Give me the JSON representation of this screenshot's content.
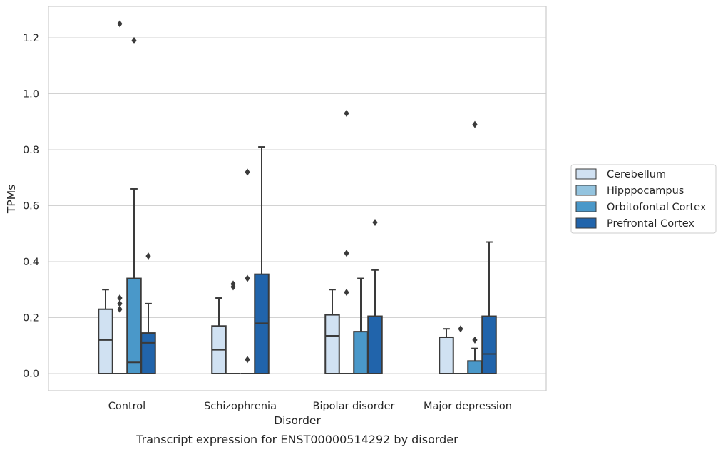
{
  "chart_data": {
    "type": "box",
    "caption": "Transcript expression for ENST00000514292 by disorder",
    "xlabel": "Disorder",
    "ylabel": "TPMs",
    "ylim": [
      -0.06,
      1.32
    ],
    "yticks": [
      "0.0",
      "0.2",
      "0.4",
      "0.6",
      "0.8",
      "1.0",
      "1.2"
    ],
    "ytick_values": [
      0.0,
      0.2,
      0.4,
      0.6,
      0.8,
      1.0,
      1.2
    ],
    "grid": "horizontal",
    "legend_position": "right",
    "categories": [
      "Control",
      "Schizophrenia",
      "Bipolar disorder",
      "Major depression"
    ],
    "series": [
      {
        "name": "Cerebellum",
        "color": "#d0e1f2",
        "boxes": [
          {
            "q1": 0.0,
            "median": 0.12,
            "q3": 0.23,
            "whislo": 0.0,
            "whishi": 0.3,
            "fliers": []
          },
          {
            "q1": 0.0,
            "median": 0.085,
            "q3": 0.17,
            "whislo": 0.0,
            "whishi": 0.27,
            "fliers": []
          },
          {
            "q1": 0.0,
            "median": 0.135,
            "q3": 0.21,
            "whislo": 0.0,
            "whishi": 0.3,
            "fliers": []
          },
          {
            "q1": 0.0,
            "median": 0.13,
            "q3": 0.13,
            "whislo": 0.0,
            "whishi": 0.16,
            "fliers": []
          }
        ]
      },
      {
        "name": "Hipppocampus",
        "color": "#94c4df",
        "boxes": [
          {
            "q1": 0.0,
            "median": 0.0,
            "q3": 0.0,
            "whislo": 0.0,
            "whishi": 0.0,
            "fliers": [
              0.23,
              0.25,
              0.27,
              1.25
            ]
          },
          {
            "q1": 0.0,
            "median": 0.0,
            "q3": 0.0,
            "whislo": 0.0,
            "whishi": 0.0,
            "fliers": [
              0.31,
              0.32
            ]
          },
          {
            "q1": 0.0,
            "median": 0.0,
            "q3": 0.0,
            "whislo": 0.0,
            "whishi": 0.0,
            "fliers": [
              0.29,
              0.43,
              0.93
            ]
          },
          {
            "q1": 0.0,
            "median": 0.0,
            "q3": 0.0,
            "whislo": 0.0,
            "whishi": 0.0,
            "fliers": [
              0.16
            ]
          }
        ]
      },
      {
        "name": "Orbitofontal Cortex",
        "color": "#4a98c9",
        "boxes": [
          {
            "q1": 0.0,
            "median": 0.04,
            "q3": 0.34,
            "whislo": 0.0,
            "whishi": 0.66,
            "fliers": [
              1.19
            ]
          },
          {
            "q1": 0.0,
            "median": 0.0,
            "q3": 0.0,
            "whislo": 0.0,
            "whishi": 0.0,
            "fliers": [
              0.05,
              0.34,
              0.72
            ]
          },
          {
            "q1": 0.0,
            "median": 0.0,
            "q3": 0.15,
            "whislo": 0.0,
            "whishi": 0.34,
            "fliers": []
          },
          {
            "q1": 0.0,
            "median": 0.0,
            "q3": 0.045,
            "whislo": 0.0,
            "whishi": 0.09,
            "fliers": [
              0.12,
              0.89
            ]
          }
        ]
      },
      {
        "name": "Prefrontal Cortex",
        "color": "#2164ab",
        "boxes": [
          {
            "q1": 0.0,
            "median": 0.11,
            "q3": 0.145,
            "whislo": 0.0,
            "whishi": 0.25,
            "fliers": [
              0.42
            ]
          },
          {
            "q1": 0.0,
            "median": 0.18,
            "q3": 0.355,
            "whislo": 0.0,
            "whishi": 0.81,
            "fliers": []
          },
          {
            "q1": 0.0,
            "median": 0.0,
            "q3": 0.205,
            "whislo": 0.0,
            "whishi": 0.37,
            "fliers": [
              0.54
            ]
          },
          {
            "q1": 0.0,
            "median": 0.07,
            "q3": 0.205,
            "whislo": 0.0,
            "whishi": 0.47,
            "fliers": []
          }
        ]
      }
    ]
  }
}
